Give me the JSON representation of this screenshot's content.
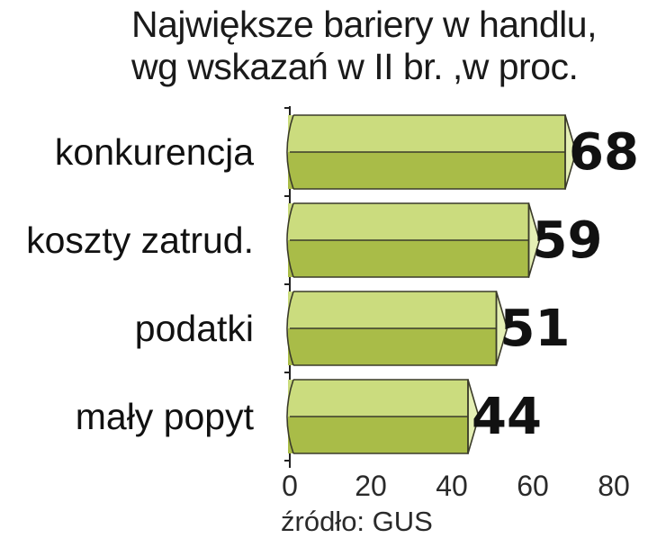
{
  "chart_data": {
    "type": "bar",
    "orientation": "horizontal",
    "title_lines": [
      "Największe bariery w handlu,",
      "wg wskazań w II br. ,w proc."
    ],
    "categories": [
      "konkurencja",
      "koszty zatrud.",
      "podatki",
      "mały popyt"
    ],
    "values": [
      68,
      59,
      51,
      44
    ],
    "xlim": [
      0,
      80
    ],
    "xticks": [
      0,
      20,
      40,
      60,
      80
    ],
    "grid": false,
    "legend": "none",
    "style": "3d-prism"
  },
  "source": "źródło: GUS",
  "colors": {
    "bar_top": "#cbdc7e",
    "bar_bottom": "#a9bc48",
    "bar_end": "#e4efb4",
    "bar_outline": "#3b3b2a",
    "axis": "#222222",
    "text": "#111111"
  }
}
